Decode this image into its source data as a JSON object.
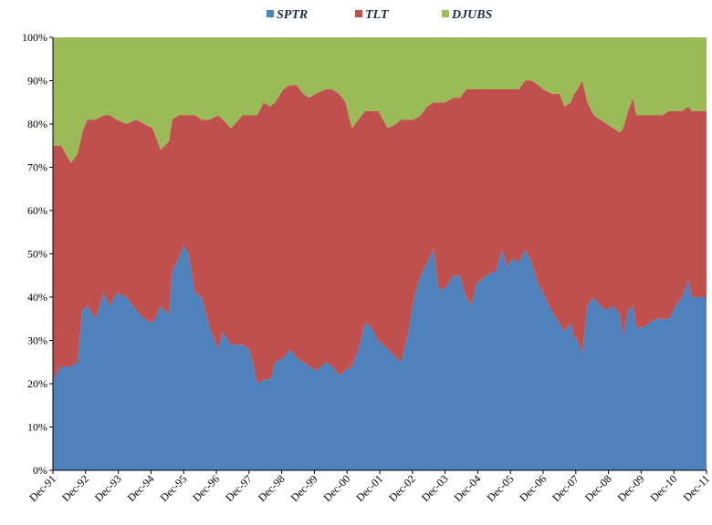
{
  "chart_data": {
    "type": "area",
    "stacked": true,
    "percent": true,
    "title": "",
    "xlabel": "",
    "ylabel": "",
    "ylim": [
      0,
      100
    ],
    "y_ticks": [
      "0%",
      "10%",
      "20%",
      "30%",
      "40%",
      "50%",
      "60%",
      "70%",
      "80%",
      "90%",
      "100%"
    ],
    "x_ticks": [
      "Dec-91",
      "Dec-92",
      "Dec-93",
      "Dec-94",
      "Dec-95",
      "Dec-96",
      "Dec-97",
      "Dec-98",
      "Dec-99",
      "Dec-00",
      "Dec-01",
      "Dec-02",
      "Dec-03",
      "Dec-04",
      "Dec-05",
      "Dec-06",
      "Dec-07",
      "Dec-08",
      "Dec-09",
      "Dec-10",
      "Dec-11"
    ],
    "legend_position": "top",
    "grid": false,
    "series": [
      {
        "name": "SPTR",
        "color": "#4f81bd",
        "points": [
          [
            1991.95,
            21
          ],
          [
            1992.2,
            24
          ],
          [
            1992.5,
            24
          ],
          [
            1992.7,
            25
          ],
          [
            1992.85,
            37
          ],
          [
            1993.0,
            38
          ],
          [
            1993.25,
            35
          ],
          [
            1993.5,
            41
          ],
          [
            1993.7,
            38
          ],
          [
            1993.9,
            41
          ],
          [
            1994.2,
            40
          ],
          [
            1994.5,
            37
          ],
          [
            1994.75,
            35
          ],
          [
            1995.0,
            34
          ],
          [
            1995.25,
            38
          ],
          [
            1995.5,
            36
          ],
          [
            1995.6,
            46
          ],
          [
            1995.8,
            49
          ],
          [
            1995.95,
            52
          ],
          [
            1996.1,
            50
          ],
          [
            1996.3,
            41
          ],
          [
            1996.5,
            40
          ],
          [
            1996.75,
            33
          ],
          [
            1997.0,
            28
          ],
          [
            1997.15,
            32
          ],
          [
            1997.4,
            29
          ],
          [
            1997.75,
            29
          ],
          [
            1997.95,
            28
          ],
          [
            1998.1,
            24
          ],
          [
            1998.2,
            20
          ],
          [
            1998.4,
            21
          ],
          [
            1998.6,
            21
          ],
          [
            1998.75,
            25
          ],
          [
            1999.0,
            26
          ],
          [
            1999.2,
            28
          ],
          [
            1999.4,
            26
          ],
          [
            1999.6,
            25
          ],
          [
            1999.8,
            24
          ],
          [
            2000.0,
            23
          ],
          [
            2000.3,
            25
          ],
          [
            2000.5,
            24
          ],
          [
            2000.7,
            22
          ],
          [
            2000.9,
            23
          ],
          [
            2001.1,
            24
          ],
          [
            2001.3,
            28
          ],
          [
            2001.5,
            34
          ],
          [
            2001.7,
            33
          ],
          [
            2001.9,
            30
          ],
          [
            2002.2,
            28
          ],
          [
            2002.45,
            26
          ],
          [
            2002.6,
            25
          ],
          [
            2002.8,
            31
          ],
          [
            2003.0,
            40
          ],
          [
            2003.2,
            45
          ],
          [
            2003.4,
            48
          ],
          [
            2003.6,
            51
          ],
          [
            2003.75,
            42
          ],
          [
            2003.95,
            42
          ],
          [
            2004.2,
            45
          ],
          [
            2004.4,
            45
          ],
          [
            2004.6,
            40
          ],
          [
            2004.75,
            38
          ],
          [
            2004.9,
            43
          ],
          [
            2005.2,
            45
          ],
          [
            2005.5,
            46
          ],
          [
            2005.7,
            51
          ],
          [
            2005.85,
            47
          ],
          [
            2006.0,
            49
          ],
          [
            2006.2,
            48
          ],
          [
            2006.4,
            51
          ],
          [
            2006.6,
            48
          ],
          [
            2006.8,
            43
          ],
          [
            2006.95,
            41
          ],
          [
            2007.2,
            37
          ],
          [
            2007.45,
            34
          ],
          [
            2007.6,
            32
          ],
          [
            2007.8,
            34
          ],
          [
            2007.9,
            31
          ],
          [
            2008.0,
            30
          ],
          [
            2008.15,
            27
          ],
          [
            2008.3,
            38
          ],
          [
            2008.5,
            40
          ],
          [
            2008.7,
            38
          ],
          [
            2008.9,
            37
          ],
          [
            2009.1,
            38
          ],
          [
            2009.3,
            36
          ],
          [
            2009.4,
            31
          ],
          [
            2009.55,
            37
          ],
          [
            2009.7,
            38
          ],
          [
            2009.8,
            33
          ],
          [
            2010.0,
            33
          ],
          [
            2010.2,
            34
          ],
          [
            2010.4,
            35
          ],
          [
            2010.6,
            35
          ],
          [
            2010.8,
            35
          ],
          [
            2011.0,
            38
          ],
          [
            2011.2,
            40
          ],
          [
            2011.4,
            44
          ],
          [
            2011.5,
            40
          ],
          [
            2011.95,
            40
          ]
        ]
      },
      {
        "name": "TLT",
        "color": "#c0504d",
        "points": [
          [
            1991.95,
            54
          ],
          [
            1992.2,
            51
          ],
          [
            1992.5,
            47
          ],
          [
            1992.7,
            48
          ],
          [
            1992.85,
            41
          ],
          [
            1993.0,
            43
          ],
          [
            1993.25,
            46
          ],
          [
            1993.5,
            41
          ],
          [
            1993.7,
            44
          ],
          [
            1993.9,
            40
          ],
          [
            1994.2,
            40
          ],
          [
            1994.5,
            44
          ],
          [
            1994.75,
            45
          ],
          [
            1995.0,
            45
          ],
          [
            1995.25,
            36
          ],
          [
            1995.5,
            40
          ],
          [
            1995.6,
            35
          ],
          [
            1995.8,
            33
          ],
          [
            1995.95,
            30
          ],
          [
            1996.1,
            32
          ],
          [
            1996.3,
            41
          ],
          [
            1996.5,
            41
          ],
          [
            1996.75,
            48
          ],
          [
            1997.0,
            54
          ],
          [
            1997.15,
            49
          ],
          [
            1997.4,
            50
          ],
          [
            1997.75,
            53
          ],
          [
            1997.95,
            54
          ],
          [
            1998.1,
            58
          ],
          [
            1998.2,
            62
          ],
          [
            1998.4,
            64
          ],
          [
            1998.6,
            63
          ],
          [
            1998.75,
            60
          ],
          [
            1999.0,
            62
          ],
          [
            1999.2,
            61
          ],
          [
            1999.4,
            63
          ],
          [
            1999.6,
            62
          ],
          [
            1999.8,
            62
          ],
          [
            2000.0,
            64
          ],
          [
            2000.3,
            63
          ],
          [
            2000.5,
            64
          ],
          [
            2000.7,
            65
          ],
          [
            2000.9,
            62
          ],
          [
            2001.1,
            55
          ],
          [
            2001.3,
            53
          ],
          [
            2001.5,
            49
          ],
          [
            2001.7,
            50
          ],
          [
            2001.9,
            53
          ],
          [
            2002.2,
            51
          ],
          [
            2002.45,
            54
          ],
          [
            2002.6,
            56
          ],
          [
            2002.8,
            50
          ],
          [
            2003.0,
            41
          ],
          [
            2003.2,
            37
          ],
          [
            2003.4,
            36
          ],
          [
            2003.6,
            34
          ],
          [
            2003.75,
            43
          ],
          [
            2003.95,
            43
          ],
          [
            2004.2,
            41
          ],
          [
            2004.4,
            41
          ],
          [
            2004.6,
            48
          ],
          [
            2004.75,
            50
          ],
          [
            2004.9,
            45
          ],
          [
            2005.2,
            43
          ],
          [
            2005.5,
            42
          ],
          [
            2005.7,
            37
          ],
          [
            2005.85,
            41
          ],
          [
            2006.0,
            39
          ],
          [
            2006.2,
            40
          ],
          [
            2006.4,
            39
          ],
          [
            2006.6,
            42
          ],
          [
            2006.8,
            46
          ],
          [
            2006.95,
            47
          ],
          [
            2007.2,
            50
          ],
          [
            2007.45,
            53
          ],
          [
            2007.6,
            52
          ],
          [
            2007.8,
            51
          ],
          [
            2007.9,
            56
          ],
          [
            2008.0,
            58
          ],
          [
            2008.15,
            63
          ],
          [
            2008.3,
            47
          ],
          [
            2008.5,
            42
          ],
          [
            2008.7,
            43
          ],
          [
            2008.9,
            43
          ],
          [
            2009.1,
            41
          ],
          [
            2009.3,
            42
          ],
          [
            2009.4,
            48
          ],
          [
            2009.55,
            46
          ],
          [
            2009.7,
            48
          ],
          [
            2009.8,
            49
          ],
          [
            2010.0,
            49
          ],
          [
            2010.2,
            48
          ],
          [
            2010.4,
            47
          ],
          [
            2010.6,
            47
          ],
          [
            2010.8,
            48
          ],
          [
            2011.0,
            45
          ],
          [
            2011.2,
            43
          ],
          [
            2011.4,
            40
          ],
          [
            2011.5,
            43
          ],
          [
            2011.95,
            43
          ]
        ]
      },
      {
        "name": "DJUBS",
        "color": "#9bbb59",
        "points": [
          [
            1991.95,
            25
          ],
          [
            1992.2,
            25
          ],
          [
            1992.5,
            29
          ],
          [
            1992.7,
            27
          ],
          [
            1992.85,
            22
          ],
          [
            1993.0,
            19
          ],
          [
            1993.25,
            19
          ],
          [
            1993.5,
            18
          ],
          [
            1993.7,
            18
          ],
          [
            1993.9,
            19
          ],
          [
            1994.2,
            20
          ],
          [
            1994.5,
            19
          ],
          [
            1994.75,
            20
          ],
          [
            1995.0,
            21
          ],
          [
            1995.25,
            26
          ],
          [
            1995.5,
            24
          ],
          [
            1995.6,
            19
          ],
          [
            1995.8,
            18
          ],
          [
            1995.95,
            18
          ],
          [
            1996.1,
            18
          ],
          [
            1996.3,
            18
          ],
          [
            1996.5,
            19
          ],
          [
            1996.75,
            19
          ],
          [
            1997.0,
            18
          ],
          [
            1997.15,
            19
          ],
          [
            1997.4,
            21
          ],
          [
            1997.75,
            18
          ],
          [
            1997.95,
            18
          ],
          [
            1998.1,
            18
          ],
          [
            1998.2,
            18
          ],
          [
            1998.4,
            15
          ],
          [
            1998.6,
            16
          ],
          [
            1998.75,
            15
          ],
          [
            1999.0,
            12
          ],
          [
            1999.2,
            11
          ],
          [
            1999.4,
            11
          ],
          [
            1999.6,
            13
          ],
          [
            1999.8,
            14
          ],
          [
            2000.0,
            13
          ],
          [
            2000.3,
            12
          ],
          [
            2000.5,
            12
          ],
          [
            2000.7,
            13
          ],
          [
            2000.9,
            15
          ],
          [
            2001.1,
            21
          ],
          [
            2001.3,
            19
          ],
          [
            2001.5,
            17
          ],
          [
            2001.7,
            17
          ],
          [
            2001.9,
            17
          ],
          [
            2002.2,
            21
          ],
          [
            2002.45,
            20
          ],
          [
            2002.6,
            19
          ],
          [
            2002.8,
            19
          ],
          [
            2003.0,
            19
          ],
          [
            2003.2,
            18
          ],
          [
            2003.4,
            16
          ],
          [
            2003.6,
            15
          ],
          [
            2003.75,
            15
          ],
          [
            2003.95,
            15
          ],
          [
            2004.2,
            14
          ],
          [
            2004.4,
            14
          ],
          [
            2004.6,
            12
          ],
          [
            2004.75,
            12
          ],
          [
            2004.9,
            12
          ],
          [
            2005.2,
            12
          ],
          [
            2005.5,
            12
          ],
          [
            2005.7,
            12
          ],
          [
            2005.85,
            12
          ],
          [
            2006.0,
            12
          ],
          [
            2006.2,
            12
          ],
          [
            2006.4,
            10
          ],
          [
            2006.6,
            10
          ],
          [
            2006.8,
            11
          ],
          [
            2006.95,
            12
          ],
          [
            2007.2,
            13
          ],
          [
            2007.45,
            13
          ],
          [
            2007.6,
            16
          ],
          [
            2007.8,
            15
          ],
          [
            2007.9,
            13
          ],
          [
            2008.0,
            12
          ],
          [
            2008.15,
            10
          ],
          [
            2008.3,
            15
          ],
          [
            2008.5,
            18
          ],
          [
            2008.7,
            19
          ],
          [
            2008.9,
            20
          ],
          [
            2009.1,
            21
          ],
          [
            2009.3,
            22
          ],
          [
            2009.4,
            21
          ],
          [
            2009.55,
            17
          ],
          [
            2009.7,
            14
          ],
          [
            2009.8,
            18
          ],
          [
            2010.0,
            18
          ],
          [
            2010.2,
            18
          ],
          [
            2010.4,
            18
          ],
          [
            2010.6,
            18
          ],
          [
            2010.8,
            17
          ],
          [
            2011.0,
            17
          ],
          [
            2011.2,
            17
          ],
          [
            2011.4,
            16
          ],
          [
            2011.5,
            17
          ],
          [
            2011.95,
            17
          ]
        ]
      }
    ]
  }
}
